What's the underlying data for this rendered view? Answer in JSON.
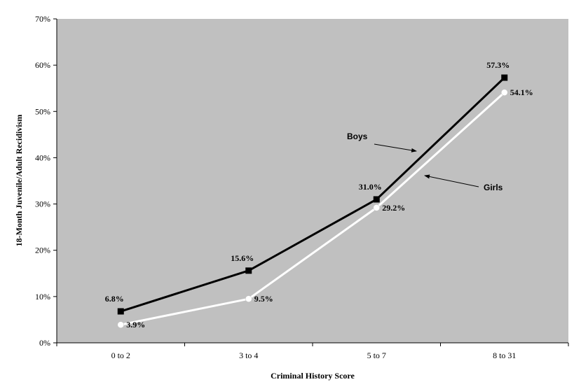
{
  "chart_data": {
    "type": "line",
    "categories": [
      "0 to 2",
      "3 to 4",
      "5 to 7",
      "8 to 31"
    ],
    "series": [
      {
        "name": "Boys",
        "values": [
          6.8,
          15.6,
          31.0,
          57.3
        ],
        "labels": [
          "6.8%",
          "15.6%",
          "31.0%",
          "57.3%"
        ],
        "color": "#000000",
        "marker": "square"
      },
      {
        "name": "Girls",
        "values": [
          3.9,
          9.5,
          29.2,
          54.1
        ],
        "labels": [
          "3.9%",
          "9.5%",
          "29.2%",
          "54.1%"
        ],
        "color": "#ffffff",
        "marker": "circle"
      }
    ],
    "xlabel": "Criminal History Score",
    "ylabel": "18-Month Juvenile/Adult Recidivism",
    "ylim": [
      0,
      70
    ],
    "yticks": [
      "0%",
      "10%",
      "20%",
      "30%",
      "40%",
      "50%",
      "60%",
      "70%"
    ],
    "plot_background": "#c0c0c0",
    "grid": false,
    "legend": "none",
    "annotations": [
      {
        "text": "Boys",
        "points_to": "Boys"
      },
      {
        "text": "Girls",
        "points_to": "Girls"
      }
    ]
  }
}
